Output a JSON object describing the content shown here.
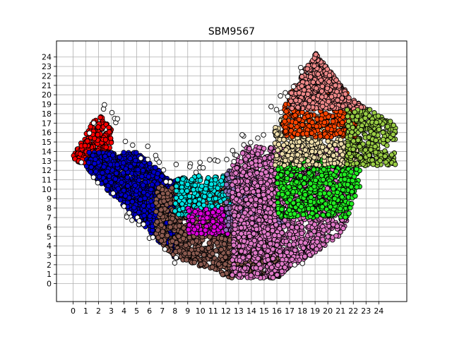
{
  "chart_data": {
    "type": "scatter",
    "title": "SBM9567",
    "xlabel": "",
    "ylabel": "",
    "xlim": [
      -1.3,
      26.2
    ],
    "ylim": [
      -1.9,
      25.7
    ],
    "grid": true,
    "legend": "none",
    "x_ticks": [
      0,
      1,
      2,
      3,
      4,
      5,
      6,
      7,
      8,
      9,
      10,
      11,
      12,
      13,
      14,
      15,
      16,
      17,
      18,
      19,
      20,
      21,
      22,
      23,
      24
    ],
    "y_ticks": [
      0,
      1,
      2,
      3,
      4,
      5,
      6,
      7,
      8,
      9,
      10,
      11,
      12,
      13,
      14,
      15,
      16,
      17,
      18,
      19,
      20,
      21,
      22,
      23,
      24
    ],
    "clusters": [
      {
        "color": "#ff0000",
        "region": {
          "x": [
            0.0,
            3.0
          ],
          "y": [
            12.6,
            18.2
          ]
        }
      },
      {
        "color": "#0000cc",
        "region": {
          "x": [
            1.0,
            8.5
          ],
          "y": [
            2.2,
            13.9
          ]
        }
      },
      {
        "color": "#8b5a50",
        "region": {
          "x": [
            6.5,
            16.2
          ],
          "y": [
            0.3,
            10.3
          ]
        }
      },
      {
        "color": "#00e5e5",
        "region": {
          "x": [
            8.0,
            12.5
          ],
          "y": [
            7.2,
            11.5
          ]
        }
      },
      {
        "color": "#dd00dd",
        "region": {
          "x": [
            9.0,
            14.5
          ],
          "y": [
            5.2,
            8.0
          ]
        }
      },
      {
        "color": "#9471bb",
        "region": {
          "x": [
            12.0,
            16.5
          ],
          "y": [
            5.5,
            12.0
          ]
        }
      },
      {
        "color": "#e07ac8",
        "region": {
          "x": [
            12.5,
            21.5
          ],
          "y": [
            0.6,
            14.5
          ]
        }
      },
      {
        "color": "#22ee22",
        "region": {
          "x": [
            16.0,
            22.5
          ],
          "y": [
            7.0,
            13.2
          ]
        }
      },
      {
        "color": "#eeddaa",
        "region": {
          "x": [
            15.8,
            22.5
          ],
          "y": [
            12.5,
            17.8
          ]
        }
      },
      {
        "color": "#ff4400",
        "region": {
          "x": [
            16.5,
            22.5
          ],
          "y": [
            15.5,
            20.5
          ]
        }
      },
      {
        "color": "#ee8888",
        "region": {
          "x": [
            17.0,
            23.0
          ],
          "y": [
            18.5,
            24.6
          ]
        }
      },
      {
        "color": "#99cc44",
        "region": {
          "x": [
            21.5,
            25.5
          ],
          "y": [
            12.5,
            18.5
          ]
        }
      },
      {
        "color": "#ffffff",
        "region": {
          "x": [
            0.5,
            19.5
          ],
          "y": [
            1.8,
            25.0
          ]
        }
      }
    ]
  }
}
